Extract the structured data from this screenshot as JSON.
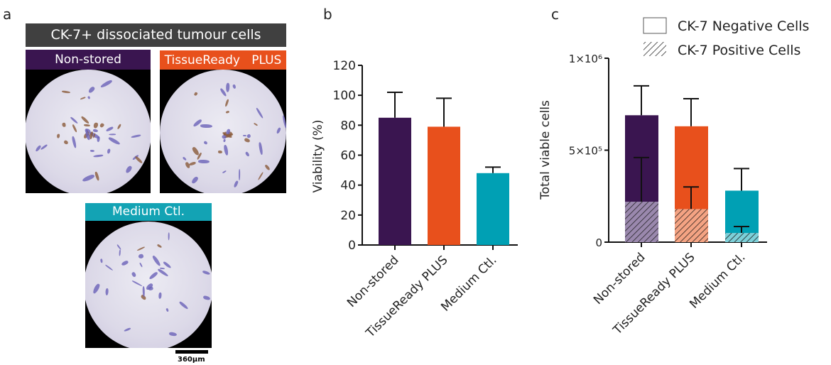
{
  "panel_labels": {
    "a": "a",
    "b": "b",
    "c": "c"
  },
  "panel_a": {
    "title": "CK-7+ dissociated tumour cells",
    "title_color": "#404040",
    "images": [
      {
        "label": "Non-stored",
        "color": "#3a1550"
      },
      {
        "label": "TissueReady   PLUS",
        "color": "#e8501c"
      },
      {
        "label": "Medium Ctl.",
        "color": "#13a3b4"
      }
    ],
    "scale_bar": "360µm"
  },
  "chart_data": [
    {
      "type": "bar",
      "title": "",
      "xlabel": "",
      "ylabel": "Viability (%)",
      "ylim": [
        0,
        120
      ],
      "yticks": [
        0,
        20,
        40,
        60,
        80,
        100,
        120
      ],
      "ytick_labels": [
        "0",
        "20",
        "40",
        "60",
        "80",
        "100",
        "120"
      ],
      "categories": [
        "Non-stored",
        "TissueReady   PLUS",
        "Medium Ctl."
      ],
      "values": [
        85,
        79,
        48
      ],
      "error_upper": [
        102,
        98,
        52
      ],
      "colors": [
        "#3a1550",
        "#e8501c",
        "#00a0b4"
      ],
      "grid": false
    },
    {
      "type": "bar",
      "stacked": true,
      "title": "",
      "xlabel": "",
      "ylabel": "Total viable cells",
      "ylim": [
        0,
        1000000
      ],
      "yticks": [
        0,
        500000,
        1000000
      ],
      "ytick_labels": [
        "0",
        "5×10⁵",
        "1×10⁶"
      ],
      "categories": [
        "Non-stored",
        "TissueReady   PLUS",
        "Medium Ctl."
      ],
      "series": [
        {
          "name": "CK-7 Positive Cells",
          "values": [
            220000,
            180000,
            50000
          ],
          "error_upper": [
            460000,
            300000,
            85000
          ],
          "pattern": "hatched"
        },
        {
          "name": "CK-7 Negative Cells",
          "total_values": [
            690000,
            630000,
            280000
          ],
          "error_upper": [
            850000,
            780000,
            400000
          ],
          "pattern": "solid"
        }
      ],
      "colors": [
        "#3a1550",
        "#e8501c",
        "#00a0b4"
      ],
      "hatch_colors": [
        "#9a88ad",
        "#f4a383",
        "#7dcfd8"
      ],
      "legend": {
        "entries": [
          "CK-7 Negative Cells",
          "CK-7 Positive Cells"
        ],
        "position": "top-right"
      },
      "grid": false
    }
  ]
}
